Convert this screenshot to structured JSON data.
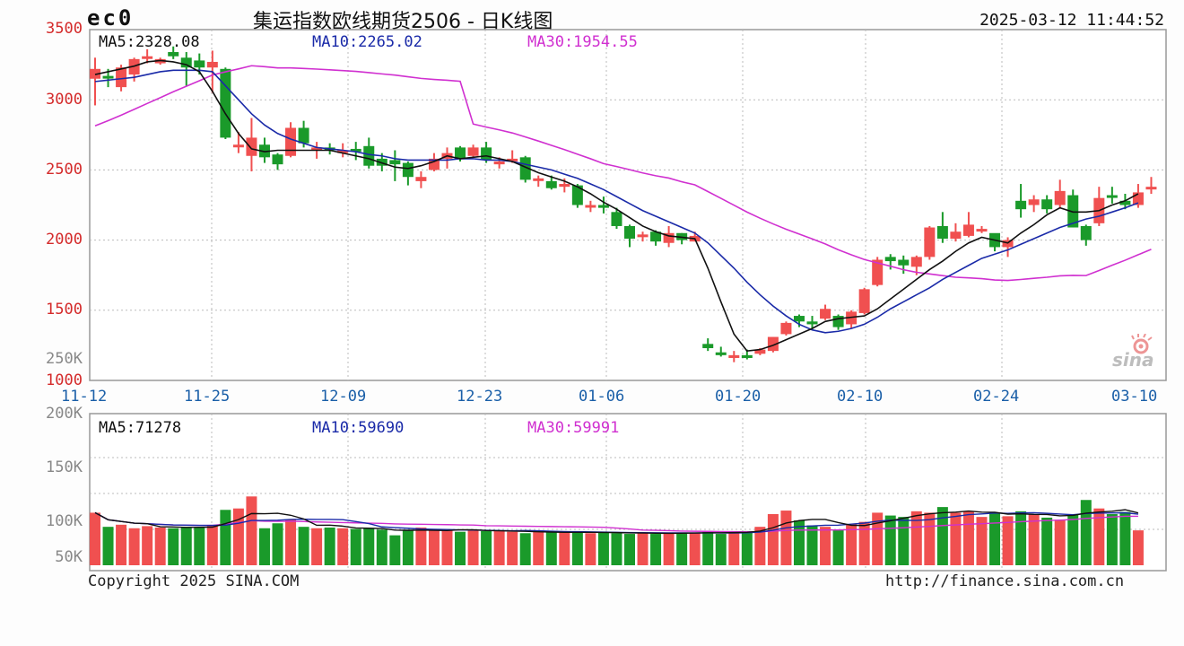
{
  "header": {
    "code": "ec0",
    "title": "集运指数欧线期货2506 - 日K线图",
    "timestamp": "2025-03-12 11:44:52"
  },
  "price_panel": {
    "ma5": "MA5:2328.08",
    "ma10": "MA10:2265.02",
    "ma30": "MA30:1954.55",
    "y_ticks": [
      "3500",
      "3000",
      "2500",
      "2000",
      "1500",
      "1000"
    ],
    "vol_overlay_tick": "250K"
  },
  "x_ticks": [
    "11-12",
    "11-25",
    "12-09",
    "12-23",
    "01-06",
    "01-20",
    "02-10",
    "02-24",
    "03-10"
  ],
  "volume_panel": {
    "ma5": "MA5:71278",
    "ma10": "MA10:59690",
    "ma30": "MA30:59991",
    "y_ticks": [
      "200K",
      "150K",
      "100K",
      "50K"
    ]
  },
  "footer": {
    "copyright": "Copyright 2025 SINA.COM",
    "url": "http://finance.sina.com.cn"
  },
  "watermark": "sina",
  "colors": {
    "up": "#f05050",
    "down": "#1a9a2a",
    "ma5": "#111111",
    "ma10": "#1a2aa8",
    "ma30": "#d030d0",
    "axis_price": "#d42a2a",
    "axis_date": "#1a5fa8"
  },
  "chart_data": {
    "type": "candlestick",
    "title": "集运指数欧线期货2506 - 日K线图",
    "ylim": [
      1000,
      3500
    ],
    "volume_ylim": [
      0,
      200000
    ],
    "x_tick_labels": [
      "11-12",
      "11-25",
      "12-09",
      "12-23",
      "01-06",
      "01-20",
      "02-10",
      "02-24",
      "03-10"
    ],
    "legend": [
      "MA5:2328.08",
      "MA10:2265.02",
      "MA30:1954.55"
    ],
    "volume_legend": [
      "MA5:71278",
      "MA10:59690",
      "MA30:59991"
    ],
    "candles": [
      [
        3150,
        3220,
        3300,
        2960
      ],
      [
        3170,
        3160,
        3220,
        3090
      ],
      [
        3090,
        3230,
        3250,
        3060
      ],
      [
        3180,
        3290,
        3300,
        3130
      ],
      [
        3300,
        3310,
        3360,
        3260
      ],
      [
        3260,
        3290,
        3300,
        3250
      ],
      [
        3340,
        3310,
        3380,
        3290
      ],
      [
        3300,
        3230,
        3340,
        3100
      ],
      [
        3280,
        3230,
        3330,
        3180
      ],
      [
        3230,
        3270,
        3350,
        3050
      ],
      [
        3220,
        2730,
        3230,
        2720
      ],
      [
        2680,
        2680,
        2770,
        2620
      ],
      [
        2600,
        2730,
        2870,
        2490
      ],
      [
        2680,
        2590,
        2730,
        2550
      ],
      [
        2610,
        2540,
        2620,
        2500
      ],
      [
        2600,
        2800,
        2840,
        2590
      ],
      [
        2800,
        2690,
        2850,
        2660
      ],
      [
        2660,
        2660,
        2700,
        2580
      ],
      [
        2660,
        2640,
        2690,
        2610
      ],
      [
        2620,
        2640,
        2690,
        2590
      ],
      [
        2650,
        2630,
        2700,
        2570
      ],
      [
        2670,
        2530,
        2730,
        2510
      ],
      [
        2580,
        2530,
        2620,
        2490
      ],
      [
        2570,
        2540,
        2640,
        2420
      ],
      [
        2550,
        2450,
        2560,
        2390
      ],
      [
        2420,
        2450,
        2490,
        2370
      ],
      [
        2500,
        2580,
        2620,
        2490
      ],
      [
        2580,
        2620,
        2660,
        2510
      ],
      [
        2660,
        2580,
        2670,
        2560
      ],
      [
        2600,
        2660,
        2680,
        2590
      ],
      [
        2660,
        2570,
        2700,
        2550
      ],
      [
        2540,
        2560,
        2590,
        2510
      ],
      [
        2570,
        2580,
        2640,
        2550
      ],
      [
        2590,
        2430,
        2600,
        2410
      ],
      [
        2440,
        2440,
        2460,
        2380
      ],
      [
        2420,
        2370,
        2460,
        2360
      ],
      [
        2380,
        2400,
        2440,
        2340
      ],
      [
        2390,
        2250,
        2400,
        2230
      ],
      [
        2240,
        2250,
        2280,
        2200
      ],
      [
        2250,
        2230,
        2310,
        2190
      ],
      [
        2200,
        2100,
        2230,
        2080
      ],
      [
        2100,
        2010,
        2110,
        1950
      ],
      [
        2030,
        2040,
        2060,
        1990
      ],
      [
        2060,
        1990,
        2070,
        1960
      ],
      [
        1980,
        2050,
        2100,
        1950
      ],
      [
        2050,
        2000,
        2050,
        1970
      ],
      [
        1990,
        2030,
        2060,
        1990
      ],
      [
        1260,
        1230,
        1300,
        1210
      ],
      [
        1200,
        1180,
        1240,
        1170
      ],
      [
        1160,
        1180,
        1210,
        1130
      ],
      [
        1180,
        1160,
        1220,
        1150
      ],
      [
        1190,
        1220,
        1230,
        1180
      ],
      [
        1210,
        1310,
        1310,
        1200
      ],
      [
        1330,
        1410,
        1420,
        1320
      ],
      [
        1460,
        1420,
        1470,
        1380
      ],
      [
        1420,
        1400,
        1460,
        1360
      ],
      [
        1440,
        1510,
        1540,
        1430
      ],
      [
        1460,
        1380,
        1470,
        1360
      ],
      [
        1400,
        1490,
        1500,
        1370
      ],
      [
        1480,
        1650,
        1660,
        1470
      ],
      [
        1680,
        1860,
        1880,
        1670
      ],
      [
        1880,
        1850,
        1900,
        1790
      ],
      [
        1860,
        1820,
        1890,
        1760
      ],
      [
        1810,
        1880,
        1890,
        1750
      ],
      [
        1880,
        2090,
        2100,
        1860
      ],
      [
        2100,
        2010,
        2200,
        1980
      ],
      [
        2010,
        2060,
        2120,
        1990
      ],
      [
        2030,
        2110,
        2200,
        2020
      ],
      [
        2080,
        2080,
        2100,
        2050
      ],
      [
        2050,
        1950,
        2030,
        1920
      ],
      [
        1950,
        2000,
        2020,
        1880
      ],
      [
        2280,
        2220,
        2400,
        2160
      ],
      [
        2250,
        2290,
        2320,
        2200
      ],
      [
        2290,
        2220,
        2320,
        2190
      ],
      [
        2250,
        2350,
        2430,
        2230
      ],
      [
        2320,
        2090,
        2360,
        2090
      ],
      [
        2100,
        2000,
        2110,
        1960
      ],
      [
        2120,
        2300,
        2380,
        2100
      ],
      [
        2320,
        2310,
        2380,
        2260
      ],
      [
        2280,
        2250,
        2330,
        2220
      ],
      [
        2250,
        2340,
        2400,
        2230
      ],
      [
        2370,
        2380,
        2450,
        2330
      ]
    ],
    "volumes": [
      82000,
      62000,
      65000,
      60000,
      63000,
      61000,
      60000,
      62000,
      61000,
      64000,
      86000,
      88000,
      105000,
      60000,
      67000,
      72000,
      62000,
      60000,
      61000,
      60000,
      59000,
      60000,
      58000,
      50000,
      58000,
      61000,
      58000,
      57000,
      55000,
      58000,
      56000,
      56000,
      55000,
      53000,
      55000,
      54000,
      54000,
      55000,
      53000,
      54000,
      53000,
      52000,
      54000,
      52000,
      53000,
      54000,
      53000,
      56000,
      52000,
      54000,
      56000,
      62000,
      80000,
      85000,
      71000,
      64000,
      62000,
      58000,
      66000,
      69000,
      82000,
      78000,
      76000,
      84000,
      82000,
      90000,
      82000,
      84000,
      76000,
      81000,
      77000,
      84000,
      80000,
      75000,
      72000,
      80000,
      100000,
      88000,
      80000,
      83000,
      57000
    ],
    "ma5": [
      3180,
      3200,
      3220,
      3240,
      3270,
      3280,
      3270,
      3250,
      3200,
      3060,
      2900,
      2760,
      2650,
      2630,
      2640,
      2640,
      2640,
      2640,
      2640,
      2620,
      2600,
      2580,
      2550,
      2520,
      2510,
      2530,
      2560,
      2600,
      2580,
      2590,
      2600,
      2580,
      2560,
      2520,
      2480,
      2450,
      2420,
      2380,
      2330,
      2270,
      2220,
      2160,
      2100,
      2060,
      2030,
      2020,
      2010,
      1800,
      1560,
      1330,
      1210,
      1220,
      1250,
      1290,
      1330,
      1370,
      1420,
      1440,
      1450,
      1460,
      1510,
      1580,
      1650,
      1720,
      1790,
      1850,
      1920,
      1980,
      2020,
      2000,
      1980,
      2050,
      2110,
      2180,
      2230,
      2200,
      2200,
      2210,
      2250,
      2280,
      2330
    ],
    "ma10": [
      3130,
      3140,
      3150,
      3160,
      3180,
      3200,
      3210,
      3210,
      3210,
      3200,
      3100,
      3000,
      2900,
      2820,
      2760,
      2720,
      2690,
      2660,
      2650,
      2640,
      2630,
      2610,
      2600,
      2580,
      2570,
      2570,
      2570,
      2570,
      2580,
      2580,
      2570,
      2570,
      2560,
      2540,
      2520,
      2500,
      2470,
      2440,
      2400,
      2360,
      2310,
      2260,
      2210,
      2170,
      2130,
      2090,
      2050,
      1980,
      1890,
      1800,
      1700,
      1610,
      1530,
      1460,
      1400,
      1360,
      1340,
      1350,
      1370,
      1400,
      1450,
      1510,
      1560,
      1610,
      1660,
      1720,
      1770,
      1820,
      1870,
      1900,
      1930,
      1970,
      2010,
      2050,
      2090,
      2120,
      2150,
      2170,
      2200,
      2230,
      2265
    ]
  }
}
